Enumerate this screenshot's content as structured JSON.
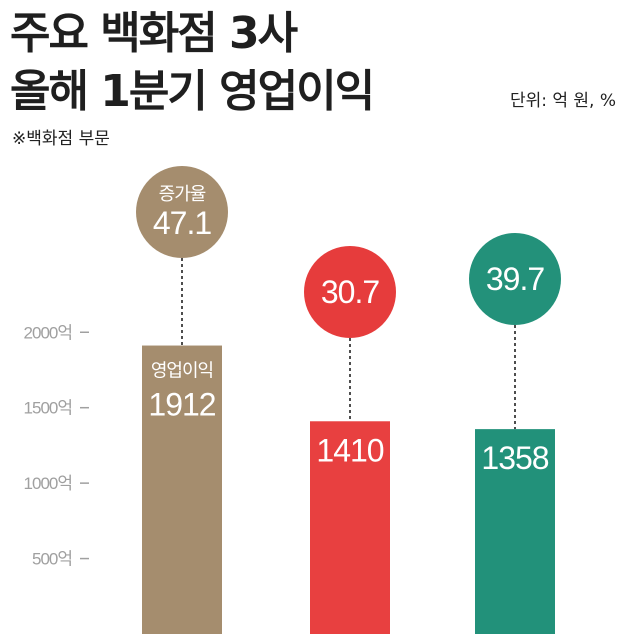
{
  "title_line1": "주요 백화점 3사",
  "title_line2": "올해 1분기 영업이익",
  "unit": "단위: 억 원, %",
  "note": "※백화점 부문",
  "circle_caption": "증가율",
  "bar_caption": "영업이익",
  "chart_data": {
    "type": "bar",
    "title": "주요 백화점 3사 올해 1분기 영업이익",
    "subtitle": "※백화점 부문",
    "unit": "단위: 억 원, %",
    "ylim": [
      0,
      2300
    ],
    "yticks": [
      500,
      1000,
      1500,
      2000
    ],
    "ytick_labels": [
      "500억",
      "1000억",
      "1500억",
      "2000억"
    ],
    "values": [
      1912,
      1410,
      1358
    ],
    "value_labels": [
      "1912",
      "1410",
      "1358"
    ],
    "growth": [
      47.1,
      30.7,
      39.7
    ],
    "growth_labels": [
      "47.1",
      "30.7",
      "39.7"
    ],
    "colors": [
      "#A58D6E",
      "#E84040",
      "#22917A"
    ],
    "circle_colors": [
      "#A58D6E",
      "#E63C3C",
      "#23917A"
    ]
  }
}
